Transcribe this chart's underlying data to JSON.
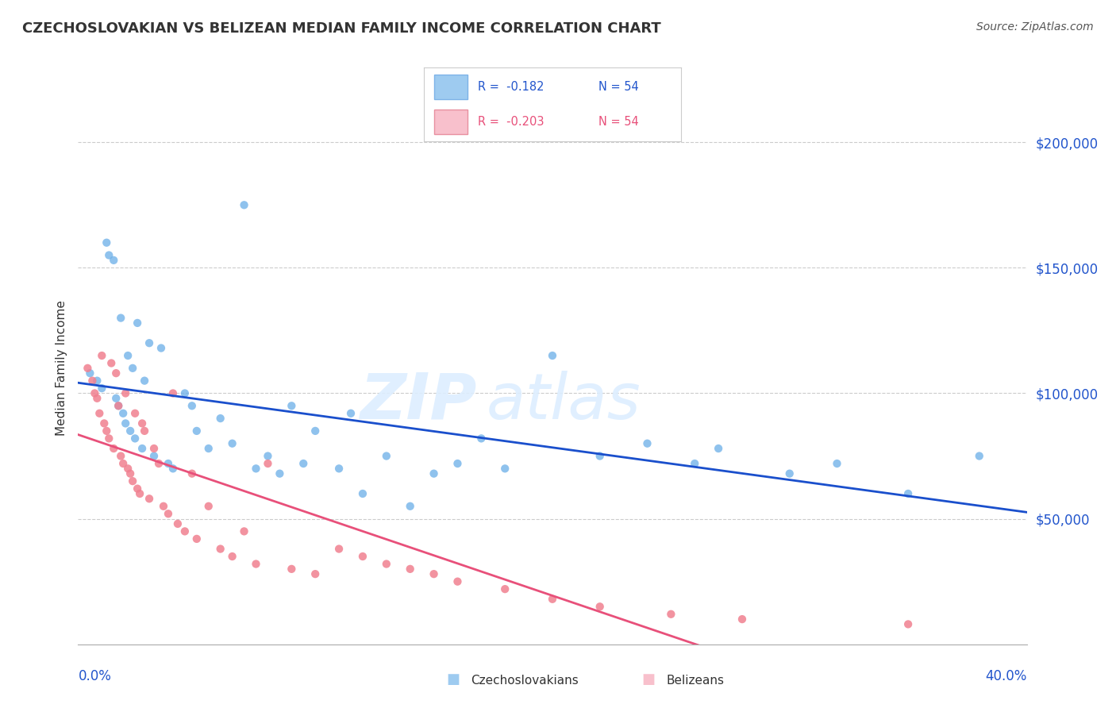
{
  "title": "CZECHOSLOVAKIAN VS BELIZEAN MEDIAN FAMILY INCOME CORRELATION CHART",
  "source_text": "Source: ZipAtlas.com",
  "ylabel": "Median Family Income",
  "xlim": [
    0.0,
    0.4
  ],
  "ylim": [
    0,
    220000
  ],
  "yticks": [
    50000,
    100000,
    150000,
    200000
  ],
  "ytick_labels": [
    "$50,000",
    "$100,000",
    "$150,000",
    "$200,000"
  ],
  "background_color": "#ffffff",
  "grid_color": "#cccccc",
  "czechoslovakians_color": "#6aaee8",
  "belizeans_color": "#f08090",
  "czech_line_color": "#1a4fcc",
  "beliz_line_color": "#e8507a",
  "dash_line_color": "#aaaaaa",
  "watermark_color": "#ddeeff",
  "czech_points_x": [
    0.005,
    0.008,
    0.01,
    0.012,
    0.013,
    0.015,
    0.016,
    0.017,
    0.018,
    0.019,
    0.02,
    0.021,
    0.022,
    0.023,
    0.024,
    0.025,
    0.027,
    0.028,
    0.03,
    0.032,
    0.035,
    0.038,
    0.04,
    0.045,
    0.048,
    0.05,
    0.055,
    0.06,
    0.065,
    0.07,
    0.075,
    0.08,
    0.085,
    0.09,
    0.095,
    0.1,
    0.11,
    0.115,
    0.12,
    0.13,
    0.14,
    0.15,
    0.16,
    0.17,
    0.18,
    0.2,
    0.22,
    0.24,
    0.26,
    0.27,
    0.3,
    0.32,
    0.35,
    0.38
  ],
  "czech_points_y": [
    108000,
    105000,
    102000,
    160000,
    155000,
    153000,
    98000,
    95000,
    130000,
    92000,
    88000,
    115000,
    85000,
    110000,
    82000,
    128000,
    78000,
    105000,
    120000,
    75000,
    118000,
    72000,
    70000,
    100000,
    95000,
    85000,
    78000,
    90000,
    80000,
    175000,
    70000,
    75000,
    68000,
    95000,
    72000,
    85000,
    70000,
    92000,
    60000,
    75000,
    55000,
    68000,
    72000,
    82000,
    70000,
    115000,
    75000,
    80000,
    72000,
    78000,
    68000,
    72000,
    60000,
    75000
  ],
  "beliz_points_x": [
    0.004,
    0.006,
    0.007,
    0.008,
    0.009,
    0.01,
    0.011,
    0.012,
    0.013,
    0.014,
    0.015,
    0.016,
    0.017,
    0.018,
    0.019,
    0.02,
    0.021,
    0.022,
    0.023,
    0.024,
    0.025,
    0.026,
    0.027,
    0.028,
    0.03,
    0.032,
    0.034,
    0.036,
    0.038,
    0.04,
    0.042,
    0.045,
    0.048,
    0.05,
    0.055,
    0.06,
    0.065,
    0.07,
    0.075,
    0.08,
    0.09,
    0.1,
    0.11,
    0.12,
    0.13,
    0.14,
    0.15,
    0.16,
    0.18,
    0.2,
    0.22,
    0.25,
    0.28,
    0.35
  ],
  "beliz_points_y": [
    110000,
    105000,
    100000,
    98000,
    92000,
    115000,
    88000,
    85000,
    82000,
    112000,
    78000,
    108000,
    95000,
    75000,
    72000,
    100000,
    70000,
    68000,
    65000,
    92000,
    62000,
    60000,
    88000,
    85000,
    58000,
    78000,
    72000,
    55000,
    52000,
    100000,
    48000,
    45000,
    68000,
    42000,
    55000,
    38000,
    35000,
    45000,
    32000,
    72000,
    30000,
    28000,
    38000,
    35000,
    32000,
    30000,
    28000,
    25000,
    22000,
    18000,
    15000,
    12000,
    10000,
    8000
  ]
}
